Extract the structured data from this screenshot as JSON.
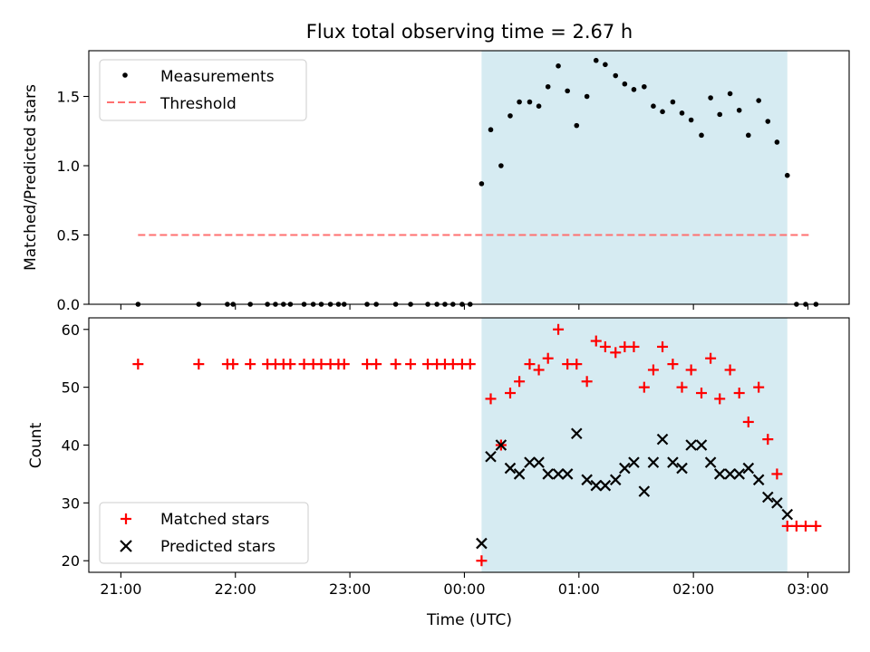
{
  "chart_data": {
    "title": "Flux total observing time = 2.67 h",
    "shared_xlabel": "Time (UTC)",
    "x_ticks": [
      "21:00",
      "22:00",
      "23:00",
      "00:00",
      "01:00",
      "02:00",
      "03:00"
    ],
    "x_tick_hours": [
      0,
      1,
      2,
      3,
      4,
      5,
      6
    ],
    "x_axis_note": "hours since 21:00 UTC",
    "xlim": [
      -0.28,
      6.36
    ],
    "shaded_interval": [
      3.15,
      5.82
    ],
    "shade_color": "#add8e6",
    "panels": [
      {
        "type": "scatter",
        "ylabel": "Matched/Predicted stars",
        "ylim": [
          0,
          1.83
        ],
        "y_ticks": [
          0.0,
          0.5,
          1.0,
          1.5
        ],
        "y_tick_labels": [
          "0.0",
          "0.5",
          "1.0",
          "1.5"
        ],
        "legend": "top-left",
        "threshold": {
          "name": "Threshold",
          "value": 0.5,
          "x_range": [
            0.15,
            6.03
          ],
          "color": "#ff7070",
          "style": "dashed"
        },
        "series": [
          {
            "name": "Measurements",
            "marker": "dot",
            "color": "#000000",
            "points": [
              [
                0.15,
                0
              ],
              [
                0.68,
                0
              ],
              [
                0.93,
                0
              ],
              [
                0.98,
                0
              ],
              [
                1.13,
                0
              ],
              [
                1.28,
                0
              ],
              [
                1.35,
                0
              ],
              [
                1.42,
                0
              ],
              [
                1.48,
                0
              ],
              [
                1.6,
                0
              ],
              [
                1.68,
                0
              ],
              [
                1.75,
                0
              ],
              [
                1.83,
                0
              ],
              [
                1.9,
                0
              ],
              [
                1.95,
                0
              ],
              [
                2.15,
                0
              ],
              [
                2.23,
                0
              ],
              [
                2.4,
                0
              ],
              [
                2.53,
                0
              ],
              [
                2.68,
                0
              ],
              [
                2.76,
                0
              ],
              [
                2.83,
                0
              ],
              [
                2.9,
                0
              ],
              [
                2.98,
                0
              ],
              [
                3.05,
                0
              ],
              [
                3.15,
                0.87
              ],
              [
                3.23,
                1.26
              ],
              [
                3.32,
                1.0
              ],
              [
                3.4,
                1.36
              ],
              [
                3.48,
                1.46
              ],
              [
                3.57,
                1.46
              ],
              [
                3.65,
                1.43
              ],
              [
                3.73,
                1.57
              ],
              [
                3.82,
                1.72
              ],
              [
                3.9,
                1.54
              ],
              [
                3.98,
                1.29
              ],
              [
                4.07,
                1.5
              ],
              [
                4.15,
                1.76
              ],
              [
                4.23,
                1.73
              ],
              [
                4.32,
                1.65
              ],
              [
                4.4,
                1.59
              ],
              [
                4.48,
                1.55
              ],
              [
                4.57,
                1.57
              ],
              [
                4.65,
                1.43
              ],
              [
                4.73,
                1.39
              ],
              [
                4.82,
                1.46
              ],
              [
                4.9,
                1.38
              ],
              [
                4.98,
                1.33
              ],
              [
                5.07,
                1.22
              ],
              [
                5.15,
                1.49
              ],
              [
                5.23,
                1.37
              ],
              [
                5.32,
                1.52
              ],
              [
                5.4,
                1.4
              ],
              [
                5.48,
                1.22
              ],
              [
                5.57,
                1.47
              ],
              [
                5.65,
                1.32
              ],
              [
                5.73,
                1.17
              ],
              [
                5.82,
                0.93
              ],
              [
                5.9,
                0
              ],
              [
                5.98,
                0
              ],
              [
                6.07,
                0
              ]
            ]
          }
        ]
      },
      {
        "type": "scatter",
        "ylabel": "Count",
        "ylim": [
          18,
          62
        ],
        "y_ticks": [
          20,
          30,
          40,
          50,
          60
        ],
        "y_tick_labels": [
          "20",
          "30",
          "40",
          "50",
          "60"
        ],
        "legend": "bottom-left",
        "series": [
          {
            "name": "Matched stars",
            "marker": "plus",
            "color": "#ff0000",
            "points": [
              [
                0.15,
                54
              ],
              [
                0.68,
                54
              ],
              [
                0.93,
                54
              ],
              [
                0.98,
                54
              ],
              [
                1.13,
                54
              ],
              [
                1.28,
                54
              ],
              [
                1.35,
                54
              ],
              [
                1.42,
                54
              ],
              [
                1.48,
                54
              ],
              [
                1.6,
                54
              ],
              [
                1.68,
                54
              ],
              [
                1.75,
                54
              ],
              [
                1.83,
                54
              ],
              [
                1.9,
                54
              ],
              [
                1.95,
                54
              ],
              [
                2.15,
                54
              ],
              [
                2.23,
                54
              ],
              [
                2.4,
                54
              ],
              [
                2.53,
                54
              ],
              [
                2.68,
                54
              ],
              [
                2.76,
                54
              ],
              [
                2.83,
                54
              ],
              [
                2.9,
                54
              ],
              [
                2.98,
                54
              ],
              [
                3.05,
                54
              ],
              [
                3.15,
                20
              ],
              [
                3.23,
                48
              ],
              [
                3.32,
                40
              ],
              [
                3.4,
                49
              ],
              [
                3.48,
                51
              ],
              [
                3.57,
                54
              ],
              [
                3.65,
                53
              ],
              [
                3.73,
                55
              ],
              [
                3.82,
                60
              ],
              [
                3.9,
                54
              ],
              [
                3.98,
                54
              ],
              [
                4.07,
                51
              ],
              [
                4.15,
                58
              ],
              [
                4.23,
                57
              ],
              [
                4.32,
                56
              ],
              [
                4.4,
                57
              ],
              [
                4.48,
                57
              ],
              [
                4.57,
                50
              ],
              [
                4.65,
                53
              ],
              [
                4.73,
                57
              ],
              [
                4.82,
                54
              ],
              [
                4.9,
                50
              ],
              [
                4.98,
                53
              ],
              [
                5.07,
                49
              ],
              [
                5.15,
                55
              ],
              [
                5.23,
                48
              ],
              [
                5.32,
                53
              ],
              [
                5.4,
                49
              ],
              [
                5.48,
                44
              ],
              [
                5.57,
                50
              ],
              [
                5.65,
                41
              ],
              [
                5.73,
                35
              ],
              [
                5.82,
                26
              ],
              [
                5.9,
                26
              ],
              [
                5.98,
                26
              ],
              [
                6.07,
                26
              ]
            ]
          },
          {
            "name": "Predicted stars",
            "marker": "x",
            "color": "#000000",
            "points": [
              [
                3.15,
                23
              ],
              [
                3.23,
                38
              ],
              [
                3.32,
                40
              ],
              [
                3.4,
                36
              ],
              [
                3.48,
                35
              ],
              [
                3.57,
                37
              ],
              [
                3.65,
                37
              ],
              [
                3.73,
                35
              ],
              [
                3.82,
                35
              ],
              [
                3.9,
                35
              ],
              [
                3.98,
                42
              ],
              [
                4.07,
                34
              ],
              [
                4.15,
                33
              ],
              [
                4.23,
                33
              ],
              [
                4.32,
                34
              ],
              [
                4.4,
                36
              ],
              [
                4.48,
                37
              ],
              [
                4.57,
                32
              ],
              [
                4.65,
                37
              ],
              [
                4.73,
                41
              ],
              [
                4.82,
                37
              ],
              [
                4.9,
                36
              ],
              [
                4.98,
                40
              ],
              [
                5.07,
                40
              ],
              [
                5.15,
                37
              ],
              [
                5.23,
                35
              ],
              [
                5.32,
                35
              ],
              [
                5.4,
                35
              ],
              [
                5.48,
                36
              ],
              [
                5.57,
                34
              ],
              [
                5.65,
                31
              ],
              [
                5.73,
                30
              ],
              [
                5.82,
                28
              ]
            ]
          }
        ]
      }
    ]
  }
}
